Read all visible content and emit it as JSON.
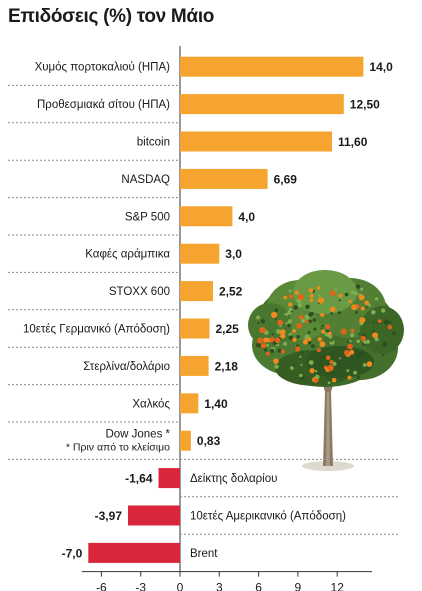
{
  "title": "Επιδόσεις (%) τον Μάιο",
  "colors": {
    "positive": "#f5a52f",
    "negative": "#d9263a",
    "divider": "#8a8a8a",
    "axis": "#333333"
  },
  "chart_data": {
    "type": "bar",
    "orientation": "horizontal",
    "title": "Επιδόσεις (%) τον Μάιο",
    "xlim": [
      -7.5,
      15
    ],
    "xticks": [
      -6,
      -3,
      0,
      3,
      6,
      9,
      12
    ],
    "tick_labels": [
      "-6",
      "-3",
      "0",
      "3",
      "6",
      "9",
      "12"
    ],
    "categories": [
      "Χυμός πορτοκαλιού (ΗΠΑ)",
      "Προθεσμιακά σίτου (ΗΠΑ)",
      "bitcoin",
      "NASDAQ",
      "S&P 500",
      "Καφές αράμπικα",
      "STOXX 600",
      "10ετές Γερμανικό (Απόδοση)",
      "Στερλίνα/δολάριο",
      "Χαλκός",
      "Dow Jones *",
      "Δείκτης δολαρίου",
      "10ετές Αμερικανικό (Απόδοση)",
      "Brent"
    ],
    "values": [
      14.0,
      12.5,
      11.6,
      6.69,
      4.0,
      3.0,
      2.52,
      2.25,
      2.18,
      1.4,
      0.83,
      -1.64,
      -3.97,
      -7.0
    ],
    "value_labels": [
      "14,0",
      "12,50",
      "11,60",
      "6,69",
      "4,0",
      "3,0",
      "2,52",
      "2,25",
      "2,18",
      "1,40",
      "0,83",
      "-1,64",
      "-3,97",
      "-7,0"
    ],
    "annotation": "* Πριν από το κλείσιμο"
  }
}
